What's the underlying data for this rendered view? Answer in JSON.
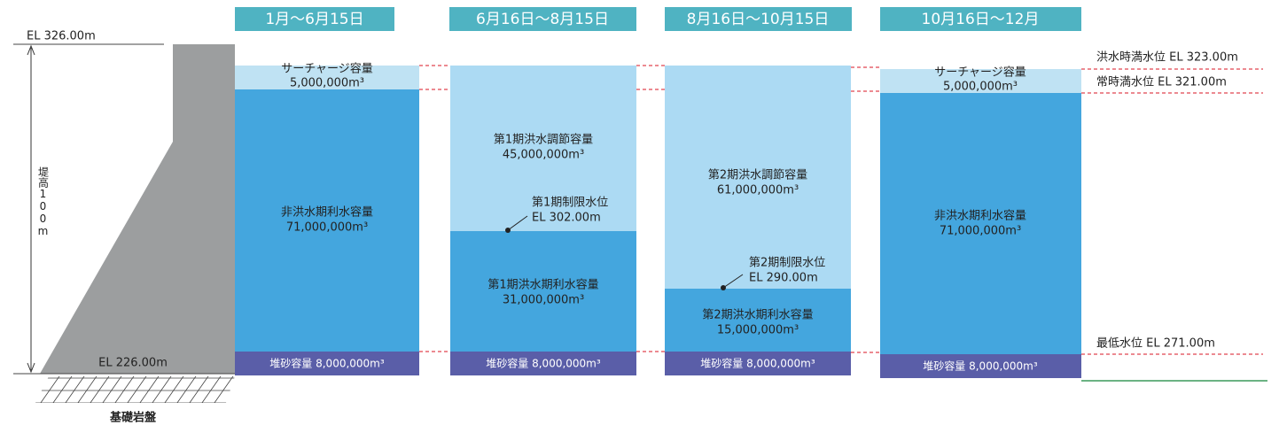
{
  "periods": [
    "1月～6月15日",
    "6月16日～8月15日",
    "8月16日～10月15日",
    "10月16日～12月"
  ],
  "dam": {
    "top_level": "EL 326.00m",
    "height": "堤高100m",
    "base_level": "EL 226.00m",
    "foundation": "基礎岩盤"
  },
  "columns": [
    {
      "blocks": [
        {
          "label": "サーチャージ容量",
          "value": "5,000,000m³"
        },
        {
          "label": "非洪水期利水容量",
          "value": "71,000,000m³"
        },
        {
          "label": "堆砂容量 8,000,000m³"
        }
      ]
    },
    {
      "blocks": [
        {
          "label": "第1期洪水調節容量",
          "value": "45,000,000m³"
        },
        {
          "label": "第1期洪水期利水容量",
          "value": "31,000,000m³"
        },
        {
          "label": "堆砂容量 8,000,000m³"
        }
      ],
      "limit": {
        "label": "第1期制限水位",
        "level": "EL 302.00m"
      }
    },
    {
      "blocks": [
        {
          "label": "第2期洪水調節容量",
          "value": "61,000,000m³"
        },
        {
          "label": "第2期洪水期利水容量",
          "value": "15,000,000m³"
        },
        {
          "label": "堆砂容量 8,000,000m³"
        }
      ],
      "limit": {
        "label": "第2期制限水位",
        "level": "EL 290.00m"
      }
    },
    {
      "blocks": [
        {
          "label": "サーチャージ容量",
          "value": "5,000,000m³"
        },
        {
          "label": "非洪水期利水容量",
          "value": "71,000,000m³"
        },
        {
          "label": "堆砂容量 8,000,000m³"
        }
      ]
    }
  ],
  "levels": [
    "洪水時満水位 EL 323.00m",
    "常時満水位 EL 321.00m",
    "最低水位 EL 271.00m"
  ]
}
